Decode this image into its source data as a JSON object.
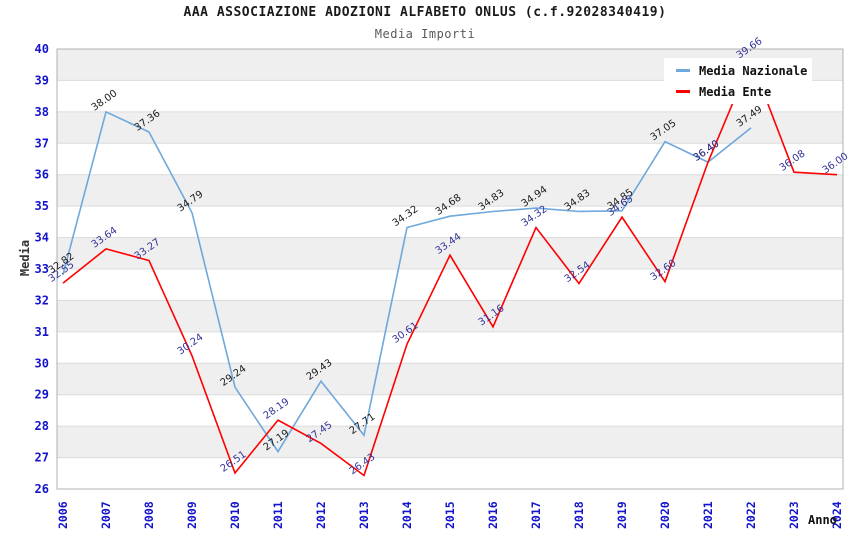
{
  "header": {
    "title": "AAA ASSOCIAZIONE ADOZIONI ALFABETO ONLUS (c.f.92028340419)",
    "subtitle": "Media Importi"
  },
  "chart_data": {
    "type": "line",
    "x": [
      2006,
      2007,
      2008,
      2009,
      2010,
      2011,
      2012,
      2013,
      2014,
      2015,
      2016,
      2017,
      2018,
      2019,
      2020,
      2021,
      2022,
      2023,
      2024
    ],
    "xlabel": "Anno",
    "ylabel": "Media",
    "ylim": [
      26,
      40
    ],
    "y_tick_step": 1,
    "grid": "horizontal alternating gray/white bands, gridline at each integer",
    "legend_position": "top-right",
    "value_label_decimals": 2,
    "series": [
      {
        "name": "Media Nazionale",
        "color": "#6fa8dc",
        "label_color": "#1a1a1a",
        "values": [
          32.82,
          38.0,
          37.36,
          34.79,
          29.24,
          27.19,
          29.43,
          27.71,
          34.32,
          34.68,
          34.83,
          34.94,
          34.83,
          34.85,
          37.05,
          36.4,
          37.49,
          null,
          null
        ]
      },
      {
        "name": "Media Ente",
        "color": "#ff0000",
        "label_color": "#333399",
        "values": [
          32.55,
          33.64,
          33.27,
          30.24,
          26.51,
          28.19,
          27.45,
          26.43,
          30.61,
          33.44,
          31.16,
          34.32,
          32.54,
          34.65,
          32.6,
          36.4,
          39.66,
          36.08,
          36.0
        ]
      }
    ]
  },
  "colors": {
    "band_gray": "#efefef",
    "band_white": "#ffffff",
    "gridline": "#dcdcdc",
    "plot_border": "#b0b0b0",
    "axis_tick_text": "#1414cc",
    "title_text": "#1a1a1a",
    "subtitle_text": "#5a5a5a",
    "background": "#ffffff"
  }
}
